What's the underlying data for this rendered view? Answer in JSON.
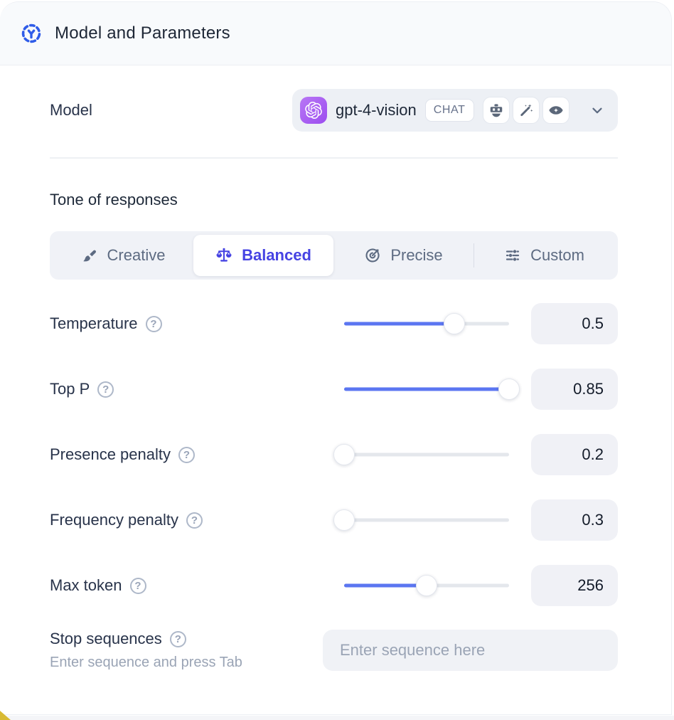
{
  "header": {
    "title": "Model and Parameters"
  },
  "model": {
    "label": "Model",
    "selected": {
      "name": "gpt-4-vision",
      "provider": "openai",
      "type_badge": "CHAT",
      "capability_icons": [
        "robot-icon",
        "magic-wand-icon",
        "vision-eye-icon"
      ]
    }
  },
  "tone": {
    "heading": "Tone of responses",
    "tabs": [
      {
        "label": "Creative",
        "icon": "paintbrush-icon",
        "active": false
      },
      {
        "label": "Balanced",
        "icon": "balance-scale-icon",
        "active": true
      },
      {
        "label": "Precise",
        "icon": "target-icon",
        "active": false
      },
      {
        "label": "Custom",
        "icon": "sliders-icon",
        "active": false
      }
    ]
  },
  "parameters": [
    {
      "label": "Temperature",
      "value": "0.5",
      "fill_percent": 67
    },
    {
      "label": "Top P",
      "value": "0.85",
      "fill_percent": 100
    },
    {
      "label": "Presence penalty",
      "value": "0.2",
      "fill_percent": 0
    },
    {
      "label": "Frequency penalty",
      "value": "0.3",
      "fill_percent": 0
    },
    {
      "label": "Max token",
      "value": "256",
      "fill_percent": 50
    }
  ],
  "stop_sequences": {
    "label": "Stop sequences",
    "hint": "Enter sequence and press Tab",
    "placeholder": "Enter sequence here"
  },
  "colors": {
    "accent_indigo": "#4643e3",
    "slider_blue": "#5b76f1",
    "provider_purple": "#a55bf0",
    "header_bg": "#f8fafc",
    "chip_bg": "#edf0f5",
    "text_dark": "#1e2736",
    "text_slate": "#5d6b82",
    "text_muted": "#9aa4b5",
    "corner_yellow": "#d8ba33"
  }
}
